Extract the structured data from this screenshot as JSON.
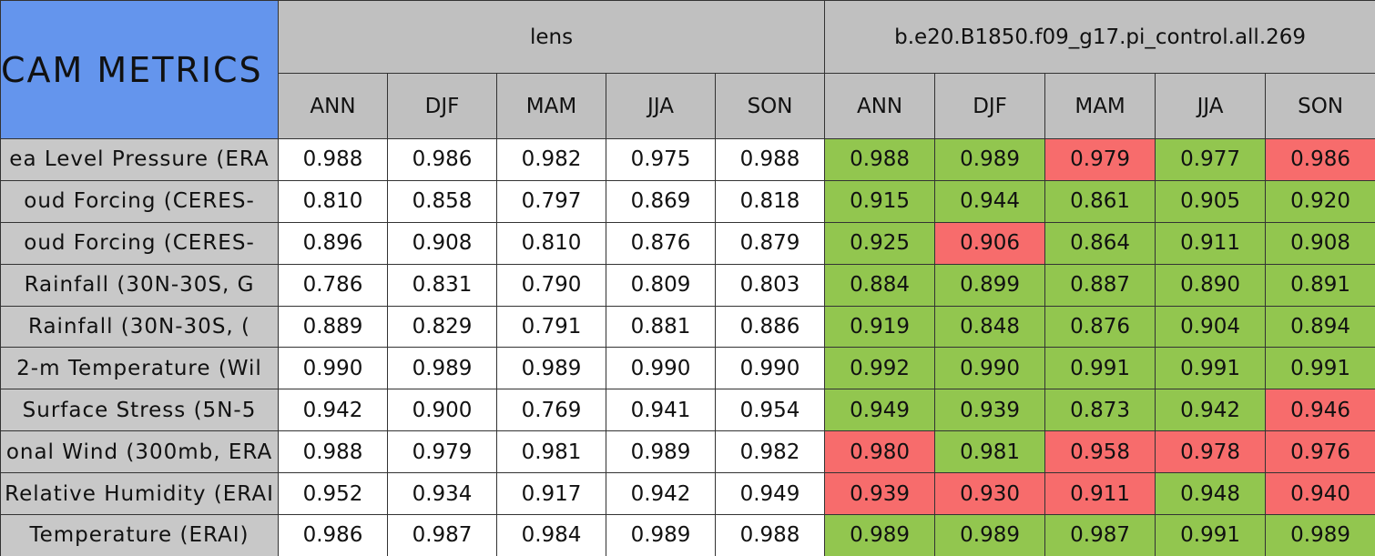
{
  "title": "CAM METRICS",
  "groups": [
    "lens",
    "b.e20.B1850.f09_g17.pi_control.all.269"
  ],
  "seasons": [
    "ANN",
    "DJF",
    "MAM",
    "JJA",
    "SON"
  ],
  "rows": [
    {
      "label": "ea Level Pressure (ERA",
      "lens": [
        "0.988",
        "0.986",
        "0.982",
        "0.975",
        "0.988"
      ],
      "run": [
        "0.988",
        "0.989",
        "0.979",
        "0.977",
        "0.986"
      ],
      "run_colors": [
        "#92c64f",
        "#92c64f",
        "#f76c6c",
        "#92c64f",
        "#f76c6c"
      ]
    },
    {
      "label": "oud Forcing (CERES-",
      "lens": [
        "0.810",
        "0.858",
        "0.797",
        "0.869",
        "0.818"
      ],
      "run": [
        "0.915",
        "0.944",
        "0.861",
        "0.905",
        "0.920"
      ],
      "run_colors": [
        "#92c64f",
        "#92c64f",
        "#92c64f",
        "#92c64f",
        "#92c64f"
      ]
    },
    {
      "label": "oud Forcing (CERES-",
      "lens": [
        "0.896",
        "0.908",
        "0.810",
        "0.876",
        "0.879"
      ],
      "run": [
        "0.925",
        "0.906",
        "0.864",
        "0.911",
        "0.908"
      ],
      "run_colors": [
        "#92c64f",
        "#f76c6c",
        "#92c64f",
        "#92c64f",
        "#92c64f"
      ]
    },
    {
      "label": "Rainfall (30N-30S, G",
      "lens": [
        "0.786",
        "0.831",
        "0.790",
        "0.809",
        "0.803"
      ],
      "run": [
        "0.884",
        "0.899",
        "0.887",
        "0.890",
        "0.891"
      ],
      "run_colors": [
        "#92c64f",
        "#92c64f",
        "#92c64f",
        "#92c64f",
        "#92c64f"
      ]
    },
    {
      "label": "Rainfall (30N-30S, (",
      "lens": [
        "0.889",
        "0.829",
        "0.791",
        "0.881",
        "0.886"
      ],
      "run": [
        "0.919",
        "0.848",
        "0.876",
        "0.904",
        "0.894"
      ],
      "run_colors": [
        "#92c64f",
        "#92c64f",
        "#92c64f",
        "#92c64f",
        "#92c64f"
      ]
    },
    {
      "label": "2-m Temperature (Wil",
      "lens": [
        "0.990",
        "0.989",
        "0.989",
        "0.990",
        "0.990"
      ],
      "run": [
        "0.992",
        "0.990",
        "0.991",
        "0.991",
        "0.991"
      ],
      "run_colors": [
        "#92c64f",
        "#92c64f",
        "#92c64f",
        "#92c64f",
        "#92c64f"
      ]
    },
    {
      "label": "Surface Stress (5N-5",
      "lens": [
        "0.942",
        "0.900",
        "0.769",
        "0.941",
        "0.954"
      ],
      "run": [
        "0.949",
        "0.939",
        "0.873",
        "0.942",
        "0.946"
      ],
      "run_colors": [
        "#92c64f",
        "#92c64f",
        "#92c64f",
        "#92c64f",
        "#f76c6c"
      ]
    },
    {
      "label": "onal Wind (300mb, ERA",
      "lens": [
        "0.988",
        "0.979",
        "0.981",
        "0.989",
        "0.982"
      ],
      "run": [
        "0.980",
        "0.981",
        "0.958",
        "0.978",
        "0.976"
      ],
      "run_colors": [
        "#f76c6c",
        "#92c64f",
        "#f76c6c",
        "#f76c6c",
        "#f76c6c"
      ]
    },
    {
      "label": "Relative Humidity (ERAI",
      "lens": [
        "0.952",
        "0.934",
        "0.917",
        "0.942",
        "0.949"
      ],
      "run": [
        "0.939",
        "0.930",
        "0.911",
        "0.948",
        "0.940"
      ],
      "run_colors": [
        "#f76c6c",
        "#f76c6c",
        "#f76c6c",
        "#92c64f",
        "#f76c6c"
      ]
    },
    {
      "label": "Temperature (ERAI)",
      "lens": [
        "0.986",
        "0.987",
        "0.984",
        "0.989",
        "0.988"
      ],
      "run": [
        "0.989",
        "0.989",
        "0.987",
        "0.991",
        "0.989"
      ],
      "run_colors": [
        "#92c64f",
        "#92c64f",
        "#92c64f",
        "#92c64f",
        "#92c64f"
      ]
    }
  ]
}
